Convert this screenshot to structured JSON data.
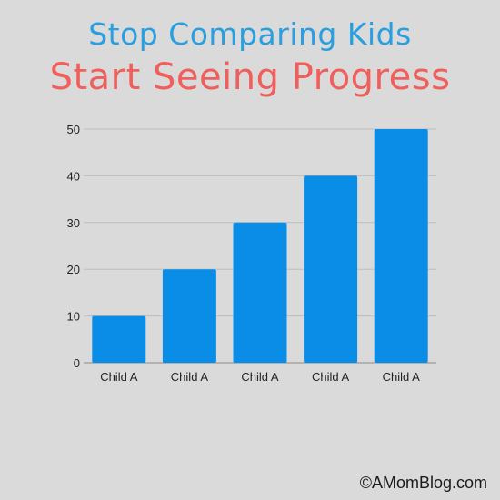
{
  "header": {
    "line1": "Stop Comparing Kids",
    "line2": "Start Seeing Progress"
  },
  "chart_data": {
    "type": "bar",
    "categories": [
      "Child A",
      "Child A",
      "Child A",
      "Child A",
      "Child A"
    ],
    "values": [
      10,
      20,
      30,
      40,
      50
    ],
    "yticks": [
      0,
      10,
      20,
      30,
      40,
      50
    ],
    "ylim": [
      0,
      50
    ],
    "grid": true,
    "legend": "none"
  },
  "colors": {
    "bar": "#0a8de6",
    "grid": "#bdbdbd",
    "line1": "#2a9fe0",
    "line2": "#ef5f5b"
  },
  "footer": {
    "copyright": "©AMomBlog.com"
  }
}
